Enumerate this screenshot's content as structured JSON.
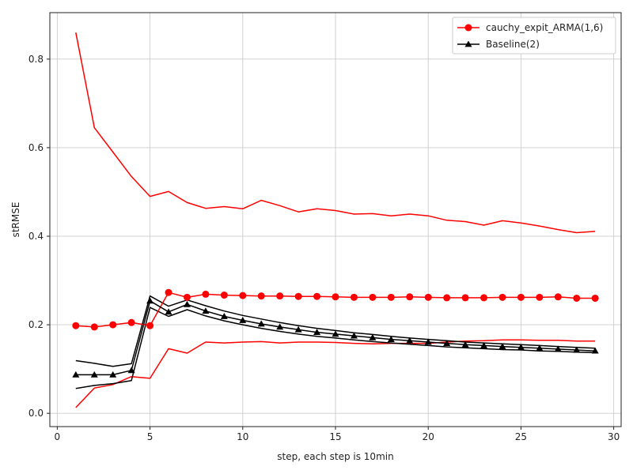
{
  "chart_data": {
    "type": "line",
    "title": "",
    "xlabel": "step, each step is 10min",
    "ylabel": "stRMSE",
    "xlim": [
      -0.4,
      30.4
    ],
    "ylim": [
      -0.03,
      0.905
    ],
    "xticks": [
      0,
      5,
      10,
      15,
      20,
      25,
      30
    ],
    "yticks": [
      0.0,
      0.2,
      0.4,
      0.6,
      0.8
    ],
    "xtick_labels": [
      "0",
      "5",
      "10",
      "15",
      "20",
      "25",
      "30"
    ],
    "ytick_labels": [
      "0.0",
      "0.2",
      "0.4",
      "0.6",
      "0.8"
    ],
    "grid": true,
    "legend_position": "top-right",
    "x": [
      1,
      2,
      3,
      4,
      5,
      6,
      7,
      8,
      9,
      10,
      11,
      12,
      13,
      14,
      15,
      16,
      17,
      18,
      19,
      20,
      21,
      22,
      23,
      24,
      25,
      26,
      27,
      28,
      29
    ],
    "series": [
      {
        "name": "cauchy_expit_ARMA(1,6)",
        "color": "#ff0000",
        "marker": "circle",
        "values": [
          0.198,
          0.195,
          0.2,
          0.205,
          0.198,
          0.273,
          0.262,
          0.269,
          0.267,
          0.266,
          0.265,
          0.265,
          0.264,
          0.264,
          0.263,
          0.262,
          0.262,
          0.262,
          0.263,
          0.262,
          0.261,
          0.261,
          0.261,
          0.262,
          0.262,
          0.262,
          0.263,
          0.26,
          0.26
        ],
        "upper": [
          0.86,
          0.645,
          0.59,
          0.535,
          0.49,
          0.501,
          0.476,
          0.463,
          0.467,
          0.462,
          0.481,
          0.469,
          0.455,
          0.462,
          0.458,
          0.45,
          0.451,
          0.446,
          0.45,
          0.446,
          0.436,
          0.433,
          0.425,
          0.435,
          0.43,
          0.423,
          0.415,
          0.408,
          0.411
        ],
        "lower": [
          0.013,
          0.057,
          0.065,
          0.083,
          0.079,
          0.146,
          0.136,
          0.161,
          0.159,
          0.161,
          0.162,
          0.159,
          0.161,
          0.161,
          0.16,
          0.158,
          0.157,
          0.158,
          0.158,
          0.158,
          0.161,
          0.163,
          0.164,
          0.166,
          0.166,
          0.165,
          0.165,
          0.163,
          0.163
        ]
      },
      {
        "name": "Baseline(2)",
        "color": "#000000",
        "marker": "triangle",
        "values": [
          0.087,
          0.087,
          0.087,
          0.097,
          0.254,
          0.229,
          0.246,
          0.231,
          0.219,
          0.21,
          0.202,
          0.195,
          0.189,
          0.183,
          0.179,
          0.175,
          0.171,
          0.167,
          0.164,
          0.161,
          0.158,
          0.155,
          0.153,
          0.151,
          0.149,
          0.147,
          0.145,
          0.143,
          0.141
        ],
        "upper": [
          0.119,
          0.113,
          0.106,
          0.112,
          0.265,
          0.242,
          0.256,
          0.243,
          0.231,
          0.221,
          0.213,
          0.205,
          0.198,
          0.192,
          0.187,
          0.182,
          0.178,
          0.174,
          0.17,
          0.167,
          0.164,
          0.161,
          0.159,
          0.157,
          0.155,
          0.153,
          0.151,
          0.149,
          0.147
        ],
        "lower": [
          0.056,
          0.063,
          0.067,
          0.074,
          0.239,
          0.219,
          0.234,
          0.22,
          0.209,
          0.2,
          0.192,
          0.185,
          0.179,
          0.174,
          0.17,
          0.166,
          0.162,
          0.159,
          0.156,
          0.153,
          0.15,
          0.148,
          0.146,
          0.144,
          0.143,
          0.141,
          0.14,
          0.138,
          0.137
        ]
      }
    ]
  }
}
